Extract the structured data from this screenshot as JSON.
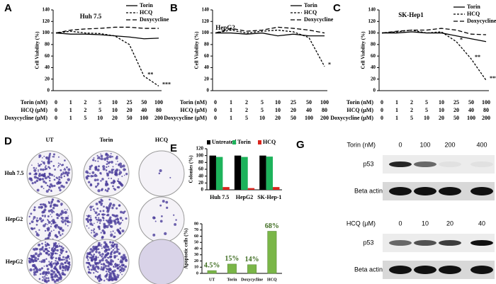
{
  "chart_data": [
    {
      "panel": "A",
      "type": "line",
      "title": "Huh 7.5",
      "y_label": "Cell Viability (%)",
      "ylim": [
        0,
        140
      ],
      "yticks": [
        0,
        20,
        40,
        60,
        80,
        100,
        120,
        140
      ],
      "dose_rows": [
        {
          "label": "Torin (nM)",
          "values": [
            0,
            1,
            2,
            5,
            10,
            25,
            50,
            100
          ]
        },
        {
          "label": "HCQ (μM)",
          "values": [
            0,
            1,
            2,
            5,
            10,
            20,
            40,
            80
          ]
        },
        {
          "label": "Doxycycline (μM)",
          "values": [
            0,
            1,
            5,
            10,
            20,
            50,
            100,
            200
          ]
        }
      ],
      "series": [
        {
          "name": "Torin",
          "color": "#000000",
          "line_style": "solid",
          "values": [
            100,
            98,
            98,
            97,
            95,
            93,
            90,
            91
          ]
        },
        {
          "name": "HCQ",
          "color": "#000000",
          "line_style": "dashed",
          "values": [
            100,
            103,
            100,
            99,
            95,
            80,
            25,
            8
          ]
        },
        {
          "name": "Doxycycline",
          "color": "#000000",
          "line_style": "long-dashed",
          "values": [
            100,
            105,
            107,
            108,
            110,
            110,
            108,
            108
          ]
        }
      ],
      "annotations": [
        "**",
        "***"
      ]
    },
    {
      "panel": "B",
      "type": "line",
      "title": "HepG2",
      "y_label": "Cell Viability (%)",
      "ylim": [
        0,
        140
      ],
      "yticks": [
        0,
        20,
        40,
        60,
        80,
        100,
        120,
        140
      ],
      "dose_rows": [
        {
          "label": "Torin (nM)",
          "values": [
            0,
            1,
            2,
            5,
            10,
            25,
            50,
            100
          ]
        },
        {
          "label": "HCQ (μM)",
          "values": [
            0,
            1,
            2,
            5,
            10,
            20,
            40,
            80
          ]
        },
        {
          "label": "Doxycycline (μM)",
          "values": [
            0,
            1,
            5,
            10,
            20,
            50,
            100,
            200
          ]
        }
      ],
      "series": [
        {
          "name": "Torin",
          "color": "#000000",
          "line_style": "solid",
          "values": [
            100,
            100,
            98,
            100,
            95,
            98,
            95,
            95
          ]
        },
        {
          "name": "HCQ",
          "color": "#000000",
          "line_style": "dashed",
          "values": [
            100,
            105,
            100,
            103,
            105,
            102,
            92,
            42
          ]
        },
        {
          "name": "Doxycycline",
          "color": "#000000",
          "line_style": "long-dashed",
          "values": [
            100,
            108,
            103,
            105,
            110,
            108,
            105,
            100
          ]
        }
      ],
      "annotations": [
        "*"
      ]
    },
    {
      "panel": "C",
      "type": "line",
      "title": "SK-Hep1",
      "y_label": "Cell Viability (%)",
      "ylim": [
        0,
        140
      ],
      "yticks": [
        0,
        20,
        40,
        60,
        80,
        100,
        120,
        140
      ],
      "dose_rows": [
        {
          "label": "Torin (nM)",
          "values": [
            0,
            1,
            2,
            5,
            10,
            25,
            50,
            100
          ]
        },
        {
          "label": "HCQ (μM)",
          "values": [
            0,
            1,
            2,
            5,
            10,
            20,
            40,
            80
          ]
        },
        {
          "label": "Doxycycline (μM)",
          "values": [
            0,
            1,
            5,
            10,
            20,
            50,
            100,
            200
          ]
        }
      ],
      "series": [
        {
          "name": "Torin",
          "color": "#000000",
          "line_style": "solid",
          "values": [
            100,
            100,
            102,
            100,
            100,
            95,
            90,
            85
          ]
        },
        {
          "name": "HCQ",
          "color": "#000000",
          "line_style": "dashed",
          "values": [
            100,
            102,
            105,
            100,
            102,
            85,
            55,
            18
          ]
        },
        {
          "name": "Doxycycline",
          "color": "#000000",
          "line_style": "long-dashed",
          "values": [
            100,
            103,
            105,
            105,
            108,
            105,
            98,
            97
          ]
        }
      ],
      "annotations": [
        "*",
        "**",
        "***"
      ]
    },
    {
      "panel": "E",
      "type": "grouped-bar",
      "y_label": "Colonies (%)",
      "ylim": [
        0,
        120
      ],
      "yticks": [
        0,
        20,
        40,
        60,
        80,
        100,
        120
      ],
      "categories": [
        "Huh 7.5",
        "HepG2",
        "SK-Hep-1"
      ],
      "series": [
        {
          "name": "Untreated",
          "color": "#000000",
          "values": [
            100,
            100,
            100
          ]
        },
        {
          "name": "Torin",
          "color": "#1db35b",
          "values": [
            96,
            96,
            97
          ]
        },
        {
          "name": "HCQ",
          "color": "#d9251d",
          "values": [
            8,
            5,
            8
          ]
        }
      ]
    },
    {
      "panel": "F",
      "type": "bar",
      "y_label": "Apoptotic cells (%)",
      "ylim": [
        0,
        80
      ],
      "yticks": [
        0,
        10,
        20,
        30,
        40,
        50,
        60,
        70,
        80
      ],
      "categories": [
        "UT",
        "Torin",
        "Doxycycline",
        "HCQ"
      ],
      "values": [
        4.5,
        15,
        14,
        68
      ],
      "value_labels": [
        "4.5%",
        "15%",
        "14%",
        "68%"
      ],
      "color": "#7ab648"
    }
  ],
  "colony_assay": {
    "panel": "D",
    "columns": [
      "UT",
      "Torin",
      "HCQ"
    ],
    "rows": [
      "Huh 7.5",
      "HepG2",
      "HepG2"
    ]
  },
  "western_blot": {
    "panel": "G",
    "blocks": [
      {
        "treatment": "Torin (nM)",
        "doses": [
          0,
          100,
          200,
          400
        ],
        "bands": [
          "p53",
          "Beta actin"
        ]
      },
      {
        "treatment": "HCQ (μM)",
        "doses": [
          0,
          10,
          20,
          40
        ],
        "bands": [
          "p53",
          "Beta actin"
        ]
      }
    ]
  }
}
